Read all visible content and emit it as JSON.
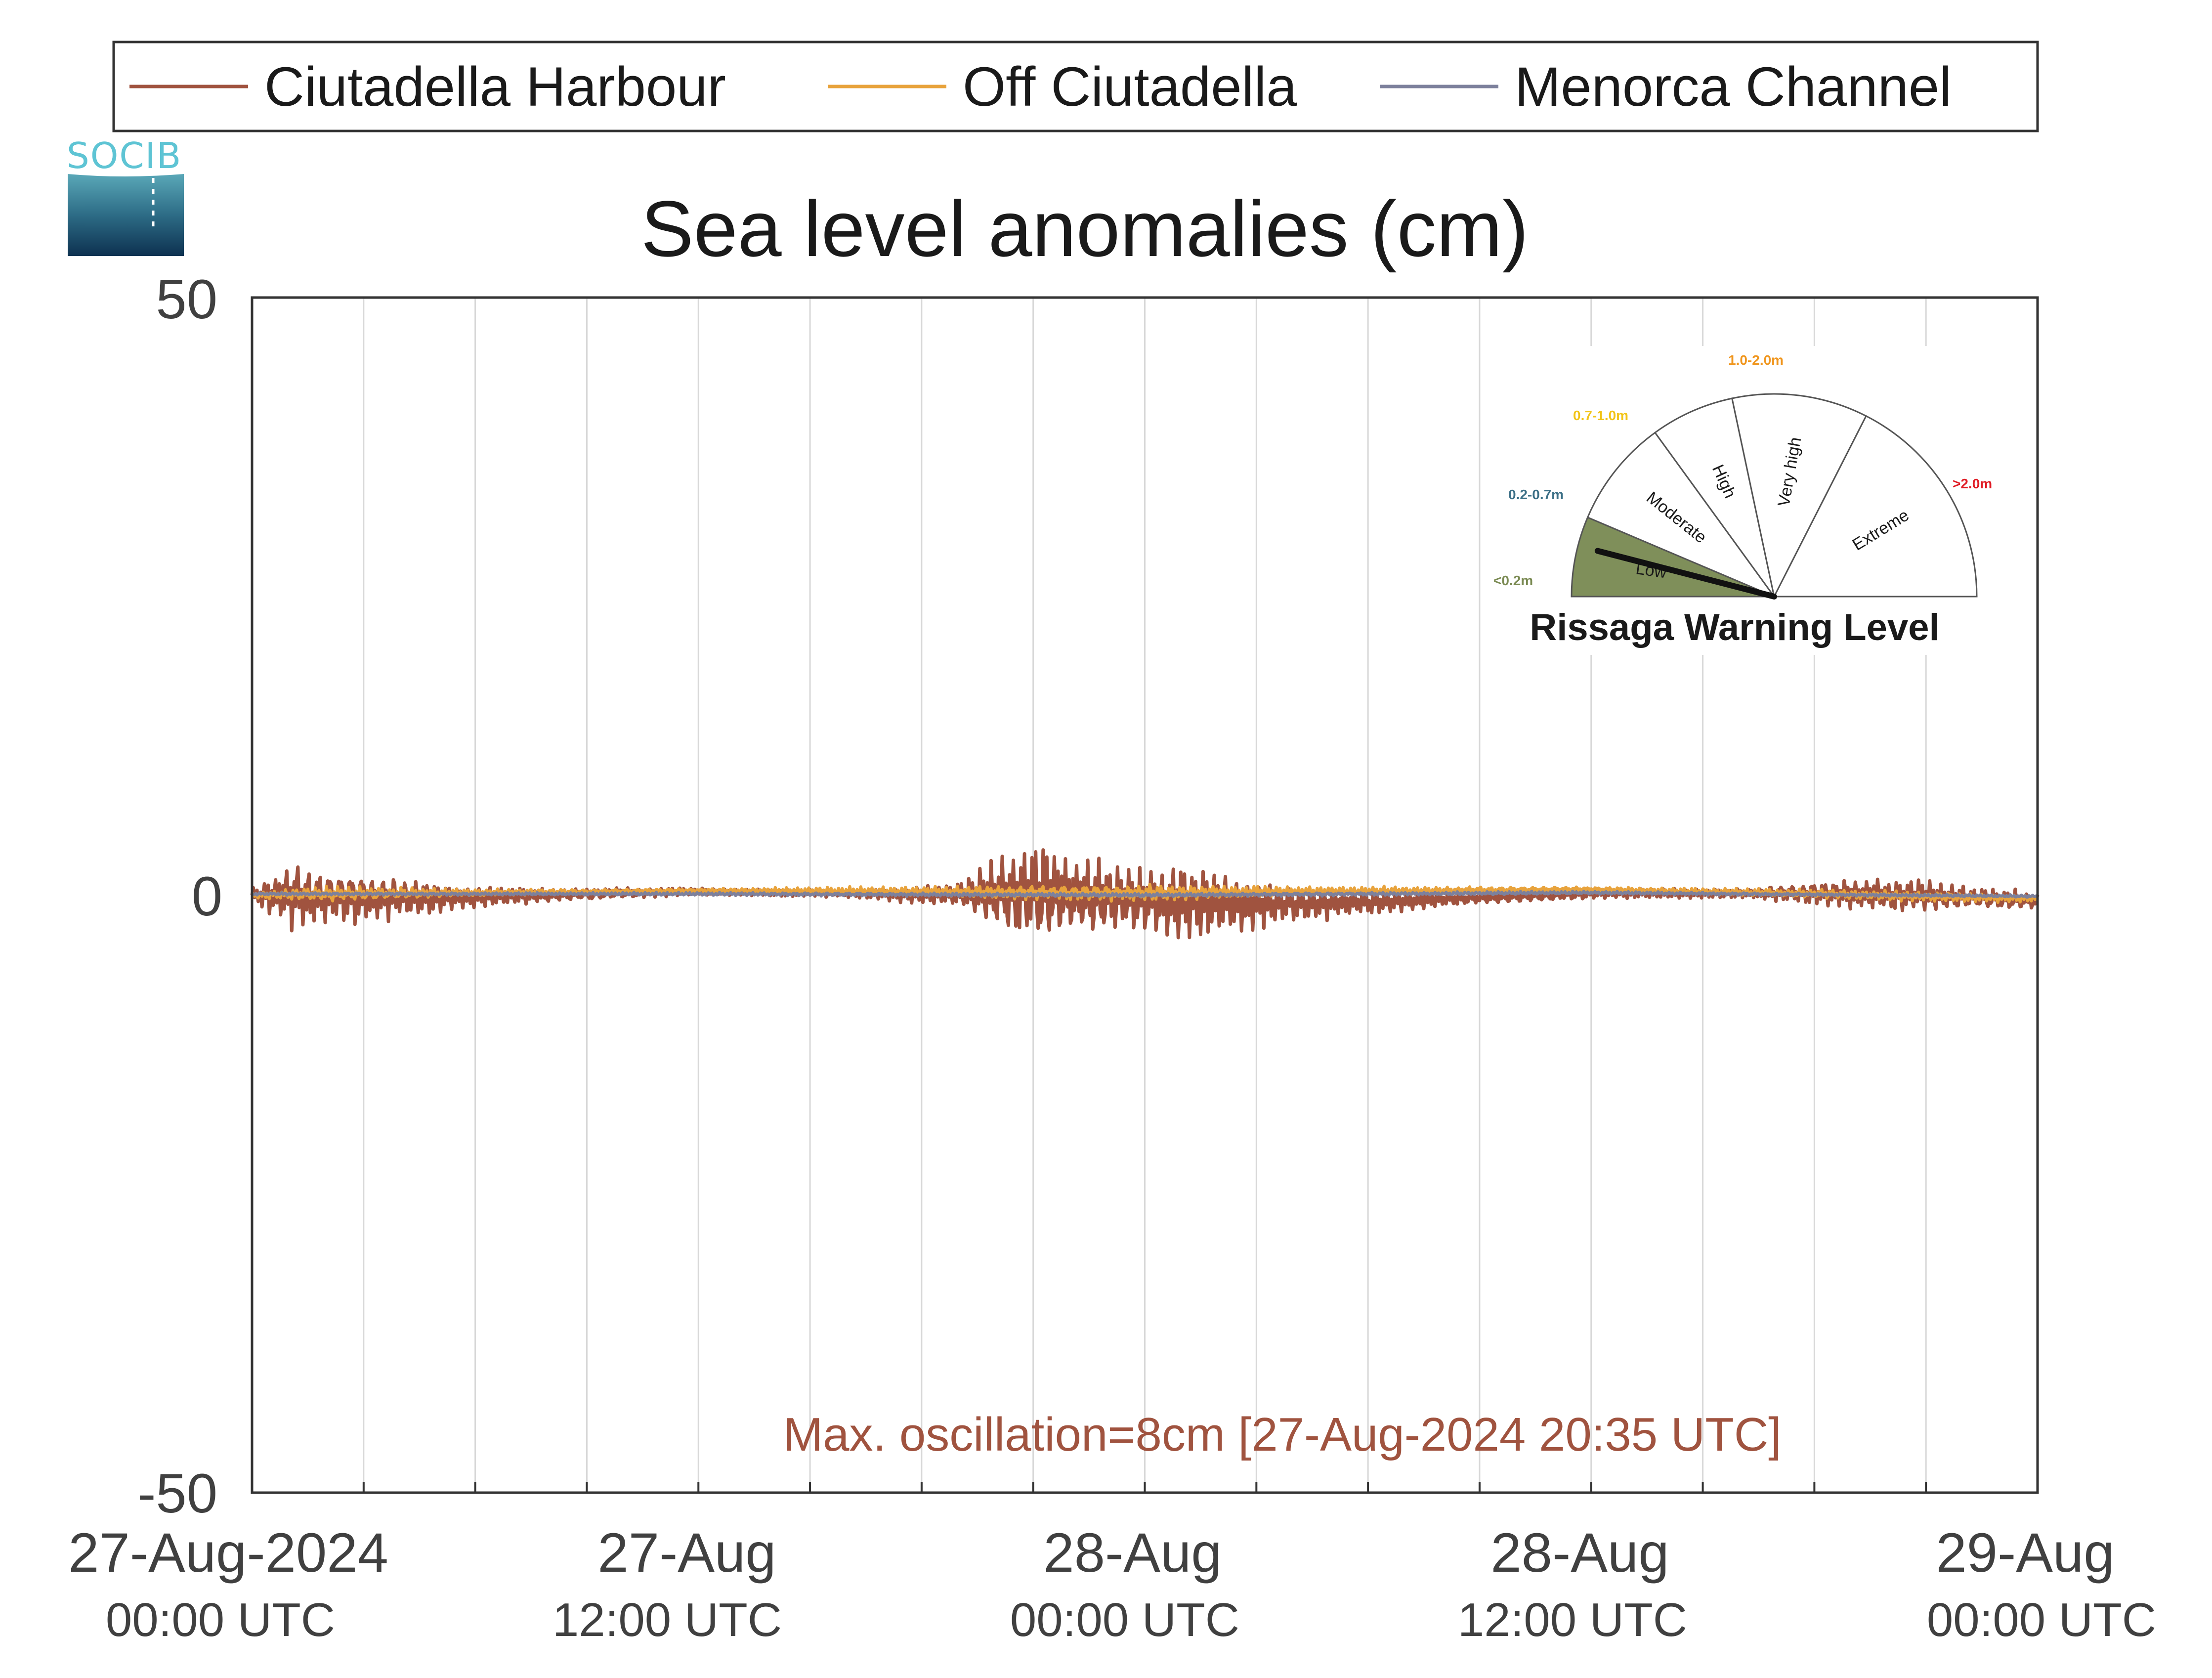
{
  "logo": {
    "text": "SOCIB"
  },
  "chart_data": {
    "type": "line",
    "title": "Sea level anomalies (cm)",
    "xlabel": "",
    "ylabel": "",
    "ylim": [
      -50,
      50
    ],
    "yticks": [
      "50",
      "0",
      "-50"
    ],
    "xlim_hours": [
      0,
      48
    ],
    "xticks": [
      {
        "line1": "27-Aug-2024",
        "line2": "00:00 UTC"
      },
      {
        "line1": "27-Aug",
        "line2": "12:00 UTC"
      },
      {
        "line1": "28-Aug",
        "line2": "00:00 UTC"
      },
      {
        "line1": "28-Aug",
        "line2": "12:00 UTC"
      },
      {
        "line1": "29-Aug",
        "line2": "00:00 UTC"
      }
    ],
    "grid": "vertical every 3 hours",
    "legend": {
      "placement": "top, horizontal, outside plot"
    },
    "series": [
      {
        "name": "Ciutadella Harbour",
        "color": "#a0533f",
        "baseline": [
          [
            0,
            0
          ],
          [
            6,
            -0.2
          ],
          [
            12,
            0.3
          ],
          [
            20,
            0
          ],
          [
            24,
            -0.5
          ],
          [
            30,
            -0.6
          ],
          [
            36,
            0.1
          ],
          [
            42,
            0.2
          ],
          [
            48,
            -0.5
          ]
        ],
        "amplitude": [
          [
            0,
            0.6
          ],
          [
            1,
            2.5
          ],
          [
            3,
            2.0
          ],
          [
            4,
            1.6
          ],
          [
            6,
            0.8
          ],
          [
            9,
            0.5
          ],
          [
            12,
            0.3
          ],
          [
            16,
            0.3
          ],
          [
            19,
            1.0
          ],
          [
            20.5,
            3.5
          ],
          [
            21.5,
            4.0
          ],
          [
            23,
            3.0
          ],
          [
            24,
            2.6
          ],
          [
            25,
            3.3
          ],
          [
            26,
            2.5
          ],
          [
            28,
            1.5
          ],
          [
            30,
            1.0
          ],
          [
            33,
            0.5
          ],
          [
            36,
            0.4
          ],
          [
            40,
            0.4
          ],
          [
            41.5,
            0.8
          ],
          [
            43,
            1.2
          ],
          [
            44.5,
            1.4
          ],
          [
            46,
            0.9
          ],
          [
            48,
            0.7
          ]
        ]
      },
      {
        "name": "Off Ciutadella",
        "color": "#e8a33c",
        "baseline": [
          [
            0,
            0
          ],
          [
            12,
            0.4
          ],
          [
            24,
            0.2
          ],
          [
            36,
            0.5
          ],
          [
            48,
            -0.3
          ]
        ],
        "amplitude": [
          [
            0,
            0.3
          ],
          [
            2,
            0.6
          ],
          [
            6,
            0.3
          ],
          [
            12,
            0.15
          ],
          [
            20,
            0.5
          ],
          [
            24,
            0.7
          ],
          [
            28,
            0.4
          ],
          [
            36,
            0.2
          ],
          [
            44,
            0.4
          ],
          [
            48,
            0.3
          ]
        ]
      },
      {
        "name": "Menorca Channel",
        "color": "#7d819c",
        "baseline": [
          [
            0,
            0.1
          ],
          [
            12,
            0.1
          ],
          [
            24,
            0.0
          ],
          [
            36,
            0.2
          ],
          [
            48,
            -0.1
          ]
        ],
        "amplitude": [
          [
            0,
            0.1
          ],
          [
            24,
            0.15
          ],
          [
            48,
            0.1
          ]
        ]
      }
    ],
    "annotation": {
      "text": "Max. oscillation=8cm [27-Aug-2024 20:35 UTC]",
      "color": "#a0533f"
    }
  },
  "gauge": {
    "title": "Rissaga Warning Level",
    "current_level": "Low",
    "levels": [
      {
        "label": "Low",
        "range": "<0.2m",
        "range_color": "#7a8a52",
        "fill": "#7f8f5a"
      },
      {
        "label": "Moderate",
        "range": "0.2-0.7m",
        "range_color": "#3b6f86",
        "fill": "#ffffff"
      },
      {
        "label": "High",
        "range": "0.7-1.0m",
        "range_color": "#f2c418",
        "fill": "#ffffff"
      },
      {
        "label": "Very high",
        "range": "1.0-2.0m",
        "range_color": "#f0961e",
        "fill": "#ffffff"
      },
      {
        "label": "Extreme",
        "range": ">2.0m",
        "range_color": "#e01b24",
        "fill": "#ffffff"
      }
    ]
  }
}
